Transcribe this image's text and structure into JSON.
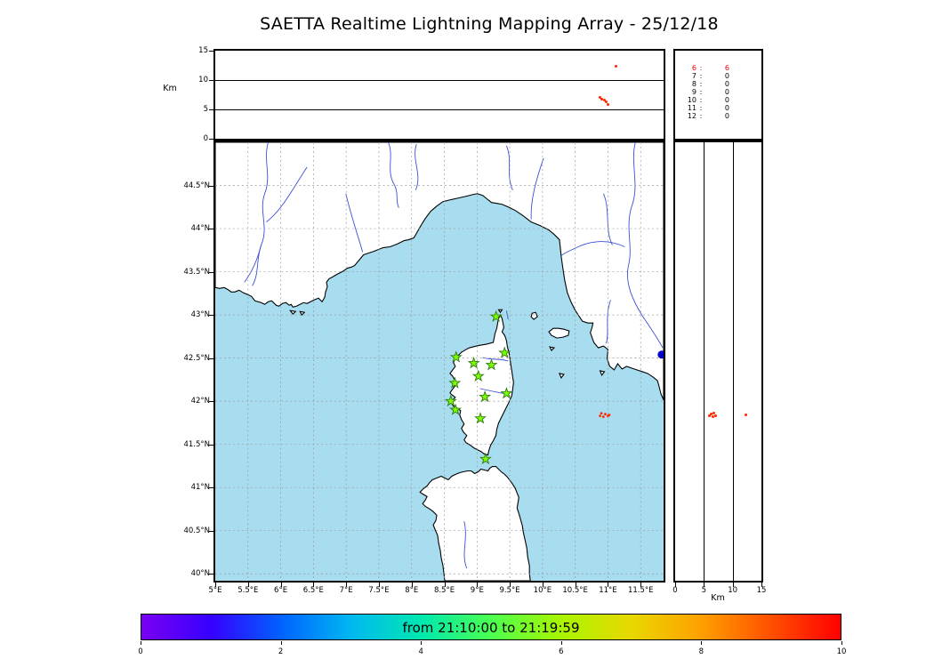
{
  "title": "SAETTA Realtime Lightning Mapping Array - 25/12/18",
  "chart_data": {
    "type": "composite",
    "description": "Realtime lightning mapping display: altitude-time scatter (top), sources-per-station-count table (top right), lon-lat map of Corsica region with LMA stations (center), altitude-latitude scatter (right), time colorbar (bottom)",
    "alt_time_panel": {
      "type": "scatter",
      "ylabel": "Km",
      "yticks": [
        0,
        5,
        10,
        15
      ],
      "ylim": [
        0,
        15
      ],
      "gridlines_at": [
        5,
        10
      ]
    },
    "station_count_table": {
      "rows": [
        {
          "stations": "6",
          "count": "6",
          "highlight": true
        },
        {
          "stations": "7",
          "count": "0",
          "highlight": false
        },
        {
          "stations": "8",
          "count": "0",
          "highlight": false
        },
        {
          "stations": "9",
          "count": "0",
          "highlight": false
        },
        {
          "stations": "10",
          "count": "0",
          "highlight": false
        },
        {
          "stations": "11",
          "count": "0",
          "highlight": false
        },
        {
          "stations": "12",
          "count": "0",
          "highlight": false
        }
      ]
    },
    "map_panel": {
      "type": "map-scatter",
      "lon_lim": [
        5.0,
        11.85
      ],
      "lat_lim": [
        39.92,
        45.0
      ],
      "lon_ticks": [
        {
          "v": 5,
          "label": "5°E"
        },
        {
          "v": 5.5,
          "label": "5.5°E"
        },
        {
          "v": 6,
          "label": "6°E"
        },
        {
          "v": 6.5,
          "label": "6.5°E"
        },
        {
          "v": 7,
          "label": "7°E"
        },
        {
          "v": 7.5,
          "label": "7.5°E"
        },
        {
          "v": 8,
          "label": "8°E"
        },
        {
          "v": 8.5,
          "label": "8.5°E"
        },
        {
          "v": 9,
          "label": "9°E"
        },
        {
          "v": 9.5,
          "label": "9.5°E"
        },
        {
          "v": 10,
          "label": "10°E"
        },
        {
          "v": 10.5,
          "label": "10.5°E"
        },
        {
          "v": 11,
          "label": "11°E"
        },
        {
          "v": 11.5,
          "label": "11.5°E"
        }
      ],
      "lat_ticks": [
        {
          "v": 44.5,
          "label": "44.5°N"
        },
        {
          "v": 44,
          "label": "44°N"
        },
        {
          "v": 43.5,
          "label": "43.5°N"
        },
        {
          "v": 43,
          "label": "43°N"
        },
        {
          "v": 42.5,
          "label": "42.5°N"
        },
        {
          "v": 42,
          "label": "42°N"
        },
        {
          "v": 41.5,
          "label": "41.5°N"
        },
        {
          "v": 41,
          "label": "41°N"
        },
        {
          "v": 40.5,
          "label": "40.5°N"
        },
        {
          "v": 40,
          "label": "40°N"
        }
      ],
      "stations_lonlat": [
        [
          9.29,
          42.98
        ],
        [
          8.68,
          42.51
        ],
        [
          8.95,
          42.44
        ],
        [
          9.22,
          42.42
        ],
        [
          9.42,
          42.56
        ],
        [
          9.02,
          42.29
        ],
        [
          8.66,
          42.21
        ],
        [
          9.45,
          42.09
        ],
        [
          8.6,
          42.0
        ],
        [
          9.12,
          42.05
        ],
        [
          8.67,
          41.9
        ],
        [
          9.05,
          41.8
        ],
        [
          9.13,
          41.33
        ]
      ],
      "city_marker_lonlat": [
        11.82,
        42.54
      ]
    },
    "alt_lat_panel": {
      "type": "scatter",
      "xlabel": "Km",
      "xticks": [
        0,
        5,
        10,
        15
      ],
      "xlim": [
        0,
        15
      ],
      "gridlines_at": [
        5,
        10
      ]
    },
    "sources": [
      {
        "t": 0.894,
        "lon": 11.02,
        "lat": 41.84,
        "alt": 12.3
      },
      {
        "t": 0.858,
        "lon": 10.88,
        "lat": 41.83,
        "alt": 7.0
      },
      {
        "t": 0.863,
        "lon": 10.9,
        "lat": 41.86,
        "alt": 6.8
      },
      {
        "t": 0.868,
        "lon": 10.93,
        "lat": 41.82,
        "alt": 6.6
      },
      {
        "t": 0.872,
        "lon": 10.96,
        "lat": 41.85,
        "alt": 6.3
      },
      {
        "t": 0.876,
        "lon": 11.0,
        "lat": 41.83,
        "alt": 5.9
      }
    ],
    "colorbar": {
      "label": "from 21:10:00 to 21:19:59",
      "ticks": [
        0,
        2,
        4,
        6,
        8,
        10
      ],
      "lim": [
        0,
        10
      ],
      "gradient": [
        "#7a00f2",
        "#3600ff",
        "#0062ff",
        "#00b8f0",
        "#00e8b0",
        "#4bff50",
        "#a8f500",
        "#e8d800",
        "#ffa000",
        "#ff5000",
        "#ff0000"
      ]
    }
  },
  "colors": {
    "sea": "#a8ddef",
    "land": "#ffffff",
    "coast": "#000000",
    "river": "#3b4fd8",
    "grid": "#999999",
    "station_fill": "#7cfc00",
    "station_edge": "#2d7a12",
    "source_dot": "#ff2600",
    "city_marker": "#0000c8",
    "highlight_row": "#e8000b"
  }
}
